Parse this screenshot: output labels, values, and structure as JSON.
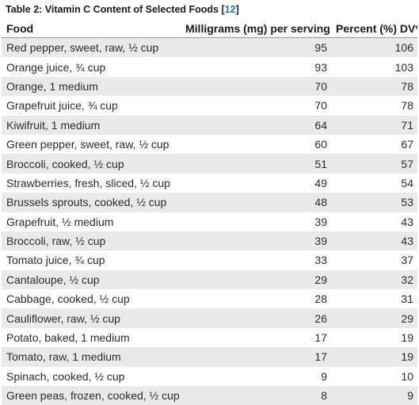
{
  "caption": {
    "text": "Table 2: Vitamin C Content of Selected Foods [",
    "ref": "12",
    "close": "]"
  },
  "table": {
    "headers": [
      "Food",
      "Milligrams (mg) per serving",
      "Percent (%) DV*"
    ],
    "rows": [
      [
        "Red pepper, sweet, raw, ½ cup",
        "95",
        "106"
      ],
      [
        "Orange juice, ¾ cup",
        "93",
        "103"
      ],
      [
        "Orange, 1 medium",
        "70",
        "78"
      ],
      [
        "Grapefruit juice, ¾ cup",
        "70",
        "78"
      ],
      [
        "Kiwifruit, 1 medium",
        "64",
        "71"
      ],
      [
        "Green pepper, sweet, raw, ½ cup",
        "60",
        "67"
      ],
      [
        "Broccoli, cooked, ½ cup",
        "51",
        "57"
      ],
      [
        "Strawberries, fresh, sliced, ½ cup",
        "49",
        "54"
      ],
      [
        "Brussels sprouts, cooked, ½ cup",
        "48",
        "53"
      ],
      [
        "Grapefruit, ½ medium",
        "39",
        "43"
      ],
      [
        "Broccoli, raw, ½ cup",
        "39",
        "43"
      ],
      [
        "Tomato juice, ¾ cup",
        "33",
        "37"
      ],
      [
        "Cantaloupe, ½ cup",
        "29",
        "32"
      ],
      [
        "Cabbage, cooked, ½ cup",
        "28",
        "31"
      ],
      [
        "Cauliflower, raw, ½ cup",
        "26",
        "29"
      ],
      [
        "Potato, baked, 1 medium",
        "17",
        "19"
      ],
      [
        "Tomato, raw, 1 medium",
        "17",
        "19"
      ],
      [
        "Spinach, cooked, ½ cup",
        "9",
        "10"
      ],
      [
        "Green peas, frozen, cooked, ½ cup",
        "8",
        "9"
      ]
    ]
  }
}
